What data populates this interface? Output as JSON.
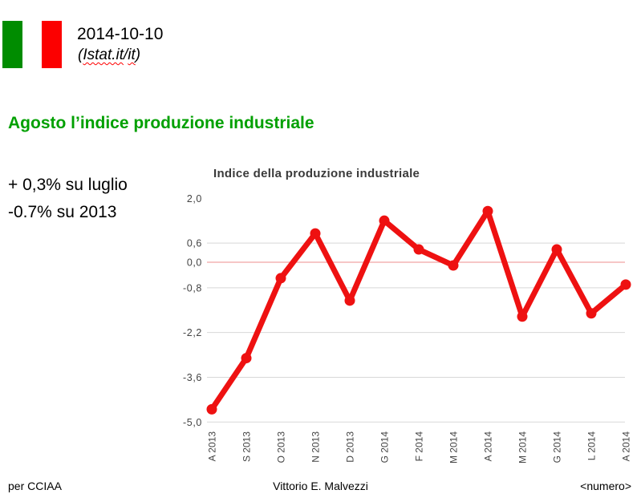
{
  "header": {
    "date": "2014-10-10",
    "subtitle": {
      "open": "(",
      "word1": "Istat.it",
      "slash": "/",
      "word2": "it",
      "close": ")"
    }
  },
  "heading": "Agosto l’indice produzione industriale",
  "stats": {
    "line1": "+ 0,3% su luglio",
    "line2": "-0.7% su 2013"
  },
  "chart_data": {
    "type": "line",
    "title": "Indice della produzione industriale",
    "categories": [
      "A 2013",
      "S 2013",
      "O 2013",
      "N 2013",
      "D 2013",
      "G 2014",
      "F 2014",
      "M 2014",
      "A 2014",
      "M 2014",
      "G 2014",
      "L 2014",
      "A 2014"
    ],
    "values": [
      -4.6,
      -3.0,
      -0.5,
      0.9,
      -1.2,
      1.3,
      0.4,
      -0.1,
      1.6,
      -1.7,
      0.4,
      -1.6,
      -0.7
    ],
    "yticks": [
      2.0,
      0.6,
      0.0,
      -0.8,
      -2.2,
      -3.6,
      -5.0
    ],
    "ytick_labels": [
      "2,0",
      "0,6",
      "0,0",
      "-0,8",
      "-2,2",
      "-3,6",
      "-5,0"
    ],
    "gridline_values": [
      0.6,
      -0.8,
      -2.2,
      -3.6,
      -5.0
    ],
    "baseline_value": 0.0,
    "ylim": [
      -5.0,
      2.0
    ],
    "xlabel": "",
    "ylabel": "",
    "legend": "none",
    "grid": true
  },
  "colors": {
    "flag_green": "#008c00",
    "flag_white": "#ffffff",
    "flag_red": "#fc0000",
    "heading_green": "#00a000",
    "squiggle_red": "#ff0000",
    "chart_title": "#3a3a3a",
    "line": "#ee1111",
    "baseline": "#f0a3a3",
    "gridline": "#d8d8d8",
    "axis_label": "#444444"
  },
  "footer": {
    "left": "per CCIAA",
    "center": "Vittorio E. Malvezzi",
    "right": "<numero>"
  }
}
